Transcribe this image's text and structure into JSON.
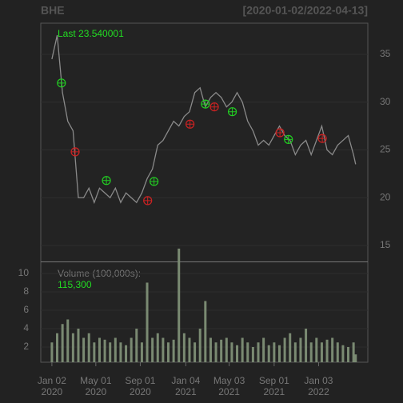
{
  "chart_data": {
    "type": "financial",
    "title": "BHE",
    "subtitle": "[2020-01-02/2022-04-13]",
    "last_label": "Last 23.540001",
    "volume_label": "Volume (100,000s):",
    "volume_last": "115,300",
    "x": [
      0,
      10,
      20,
      30,
      40,
      50,
      60,
      70,
      80,
      90,
      100,
      110,
      120,
      130,
      140,
      150,
      160,
      170,
      180,
      190,
      200,
      210,
      220,
      230,
      240,
      250,
      260,
      270,
      280,
      290,
      300,
      310,
      320,
      330,
      340,
      350,
      360,
      370,
      380,
      390,
      400,
      410,
      420,
      430,
      440,
      450,
      460,
      470,
      480,
      490,
      500,
      510,
      520,
      530,
      540,
      550,
      560,
      570,
      574
    ],
    "xlim": [
      -21,
      597
    ],
    "xticks": [
      {
        "value": 0,
        "label": "Jan 02\n2020"
      },
      {
        "value": 83,
        "label": "May 01\n2020"
      },
      {
        "value": 167,
        "label": "Sep 01\n2020"
      },
      {
        "value": 253,
        "label": "Jan 04\n2021"
      },
      {
        "value": 335,
        "label": "May 03\n2021"
      },
      {
        "value": 420,
        "label": "Sep 01\n2021"
      },
      {
        "value": 504,
        "label": "Jan 03\n2022"
      }
    ],
    "series": [
      {
        "color": "#8a8a8a",
        "values": [
          34.5,
          37,
          31,
          28,
          27,
          20,
          20,
          21,
          19.5,
          21,
          20.5,
          20,
          21,
          19.5,
          20.5,
          20,
          19.5,
          20.5,
          22,
          23,
          25.5,
          26,
          27,
          28,
          27.5,
          28.5,
          29,
          31,
          31.5,
          29.5,
          30.5,
          31,
          30.5,
          29.5,
          30,
          31,
          30,
          28,
          27,
          25.5,
          26,
          25.5,
          26.5,
          27.5,
          26.5,
          26,
          24.5,
          25.5,
          26,
          24.5,
          26,
          27.5,
          25,
          24.5,
          25.5,
          26,
          26.5,
          24.5,
          23.5
        ]
      }
    ],
    "ylim": [
      13.33,
      38.26
    ],
    "yticks": [
      15,
      20,
      25,
      30,
      35
    ],
    "buy_signals": {
      "color": "#22cc22",
      "x": [
        18,
        103,
        193,
        290,
        341,
        447
      ],
      "values": [
        32.0,
        21.8,
        21.7,
        29.8,
        29.0,
        26.1
      ]
    },
    "sell_signals": {
      "color": "#cc2222",
      "x": [
        44,
        181,
        261,
        307,
        431,
        511
      ],
      "values": [
        24.8,
        19.7,
        27.7,
        29.5,
        26.8,
        26.2
      ]
    },
    "volume": {
      "color": "#7a8a72",
      "values": [
        2.5,
        3.5,
        4.5,
        5,
        3.5,
        4,
        3,
        3.5,
        2.5,
        3,
        2.8,
        2.5,
        3,
        2.5,
        2.2,
        3,
        4,
        2.5,
        9,
        3,
        3.5,
        3,
        2.5,
        2.8,
        12.7,
        3.5,
        3,
        2.5,
        4,
        7,
        3,
        2.5,
        2.8,
        3,
        2.5,
        2.2,
        3,
        2.5,
        2,
        2.5,
        3,
        2.2,
        2.5,
        2.2,
        3,
        3.5,
        2.5,
        3,
        4,
        2.5,
        3,
        2.5,
        2.8,
        3,
        2.5,
        2.2,
        2,
        2.5,
        1.2
      ]
    },
    "y2lim": [
      0.35,
      11.3
    ],
    "y2ticks": [
      2,
      4,
      6,
      8,
      10
    ],
    "grid": true
  }
}
